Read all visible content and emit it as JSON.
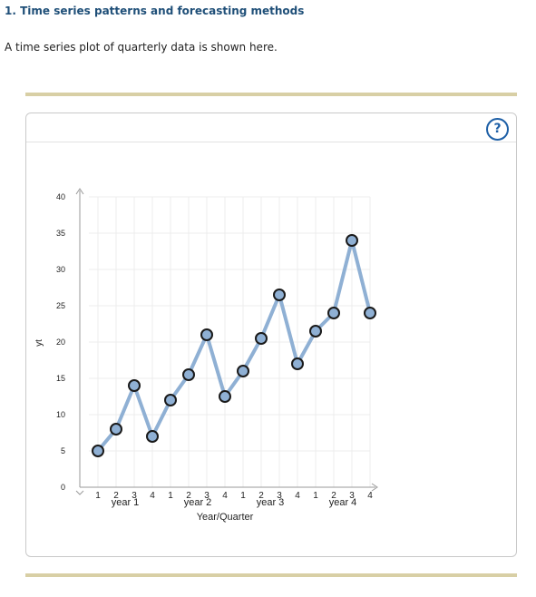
{
  "header": {
    "title": "1. Time series patterns and forecasting methods",
    "intro": "A time series plot of quarterly data is shown here."
  },
  "help": {
    "label": "?",
    "icon": "question-circle-icon"
  },
  "colors": {
    "line": "#8fb0d4",
    "marker_fill": "#8fb0d4",
    "marker_stroke": "#1a1a1a",
    "title": "#1f4f78",
    "accent_bar": "#d8cfa5"
  },
  "chart_data": {
    "type": "line",
    "title": "",
    "xlabel": "Year/Quarter",
    "ylabel": "yt",
    "ylim": [
      0,
      40
    ],
    "yticks": [
      0,
      5,
      10,
      15,
      20,
      25,
      30,
      35,
      40
    ],
    "grid": true,
    "quarter_labels": [
      "1",
      "2",
      "3",
      "4",
      "1",
      "2",
      "3",
      "4",
      "1",
      "2",
      "3",
      "4",
      "1",
      "2",
      "3",
      "4"
    ],
    "year_labels": [
      "year 1",
      "year 2",
      "year 3",
      "year 4"
    ],
    "series": [
      {
        "values": [
          5,
          8,
          14,
          7,
          12,
          15.5,
          21,
          12.5,
          16,
          20.5,
          26.5,
          17,
          21.5,
          24,
          34,
          24
        ]
      }
    ]
  }
}
